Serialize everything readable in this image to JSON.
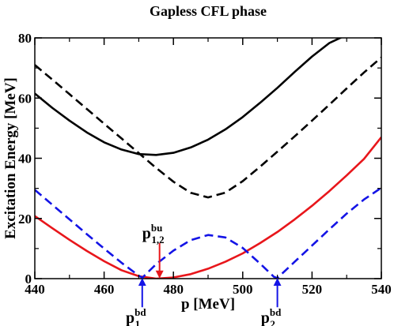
{
  "chart_data": {
    "type": "line",
    "title": "Gapless CFL phase",
    "xlabel": "p [MeV]",
    "ylabel": "Excitation Energy [MeV]",
    "xlim": [
      440,
      540
    ],
    "ylim": [
      0,
      80
    ],
    "xticks": [
      440,
      460,
      480,
      500,
      520,
      540
    ],
    "yticks": [
      0,
      20,
      40,
      60,
      80
    ],
    "xtick_labels": [
      "440",
      "460",
      "480",
      "500",
      "520",
      "540"
    ],
    "ytick_labels": [
      "0",
      "20",
      "40",
      "60",
      "80"
    ],
    "grid": false,
    "legend": "none",
    "series": [
      {
        "color": "#000000",
        "style": "solid",
        "x": [
          440,
          445,
          450,
          455,
          460,
          465,
          470,
          475,
          480,
          485,
          490,
          495,
          500,
          505,
          510,
          515,
          520,
          525,
          530,
          533
        ],
        "y": [
          61.5,
          56.8,
          52.5,
          48.6,
          45.3,
          42.9,
          41.4,
          41.1,
          41.8,
          43.6,
          46.2,
          49.6,
          53.7,
          58.4,
          63.4,
          68.7,
          73.8,
          78.3,
          81.0,
          81.0
        ]
      },
      {
        "color": "#000000",
        "style": "dashed",
        "x": [
          440,
          445,
          450,
          455,
          460,
          465,
          470,
          475,
          480,
          485,
          490,
          495,
          500,
          505,
          510,
          515,
          520,
          525,
          530,
          535,
          540
        ],
        "y": [
          71.0,
          66.2,
          61.3,
          56.4,
          51.5,
          46.6,
          41.7,
          36.8,
          32.2,
          28.5,
          27.0,
          28.6,
          32.4,
          37.2,
          42.2,
          47.3,
          52.5,
          57.8,
          63.2,
          68.5,
          73.5
        ]
      },
      {
        "color": "#e8161b",
        "style": "solid",
        "x": [
          440,
          445,
          450,
          455,
          460,
          465,
          470,
          475,
          480,
          485,
          490,
          495,
          500,
          505,
          510,
          515,
          520,
          525,
          530,
          535,
          540
        ],
        "y": [
          20.8,
          16.8,
          12.9,
          9.2,
          5.8,
          2.8,
          0.8,
          0.0,
          0.4,
          1.5,
          3.3,
          5.6,
          8.4,
          11.8,
          15.5,
          19.7,
          24.2,
          29.1,
          34.3,
          39.8,
          47.0
        ]
      },
      {
        "color": "#1414e6",
        "style": "dashed",
        "x": [
          440,
          445,
          450,
          455,
          460,
          465,
          470,
          471,
          475,
          480,
          485,
          490,
          495,
          500,
          505,
          509,
          510,
          515,
          520,
          525,
          530,
          535,
          540
        ],
        "y": [
          29.5,
          24.6,
          19.7,
          14.8,
          10.0,
          5.3,
          1.0,
          0.3,
          4.8,
          9.3,
          12.8,
          14.5,
          13.7,
          10.2,
          5.0,
          0.6,
          0.2,
          5.6,
          11.0,
          16.4,
          21.6,
          26.3,
          30.2
        ]
      }
    ],
    "annotations": [
      {
        "label_main": "p",
        "label_sub": "1,2",
        "label_sup": "bu",
        "arrow_color": "#e8161b",
        "x": 476,
        "y_from": 11.8,
        "y_to": 0.6
      },
      {
        "label_main": "p",
        "label_sub": "1",
        "label_sup": "bd",
        "arrow_color": "#1414e6",
        "x": 471,
        "y_from": -9.5,
        "y_to": -0.3
      },
      {
        "label_main": "p",
        "label_sub": "2",
        "label_sup": "bd",
        "arrow_color": "#1414e6",
        "x": 510,
        "y_from": -9.5,
        "y_to": -0.3
      }
    ]
  }
}
